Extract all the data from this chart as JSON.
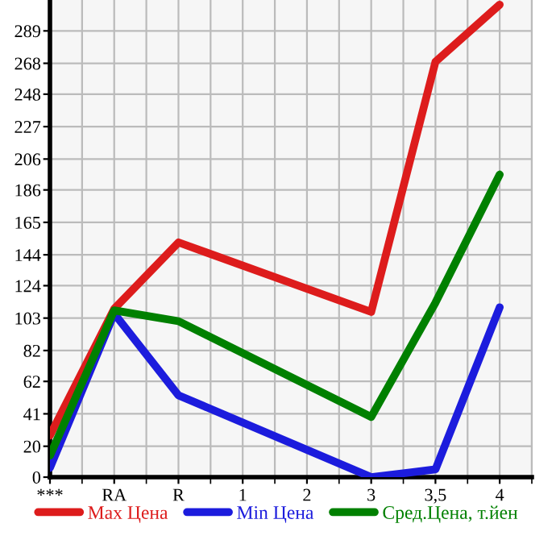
{
  "chart_data": {
    "type": "line",
    "categories": [
      "***",
      "RA",
      "R",
      "1",
      "2",
      "3",
      "3,5",
      "4"
    ],
    "series": [
      {
        "name": "Max Цена",
        "color": "#dd1c1c",
        "values": [
          27,
          109,
          152,
          null,
          null,
          107,
          269,
          306
        ]
      },
      {
        "name": "Min Цена",
        "color": "#1c1cdd",
        "values": [
          6,
          106,
          53,
          null,
          null,
          0,
          5,
          110
        ]
      },
      {
        "name": "Сред.Цена, т.йен",
        "color": "#008000",
        "values": [
          14,
          108,
          101,
          null,
          null,
          39,
          113,
          196
        ]
      }
    ],
    "ylim": [
      0,
      309
    ],
    "yticks": [
      0,
      20,
      41,
      62,
      82,
      103,
      124,
      144,
      165,
      186,
      206,
      227,
      248,
      268,
      289
    ],
    "grid": true,
    "legend": "bottom",
    "marker": "none",
    "line_style": "solid"
  }
}
